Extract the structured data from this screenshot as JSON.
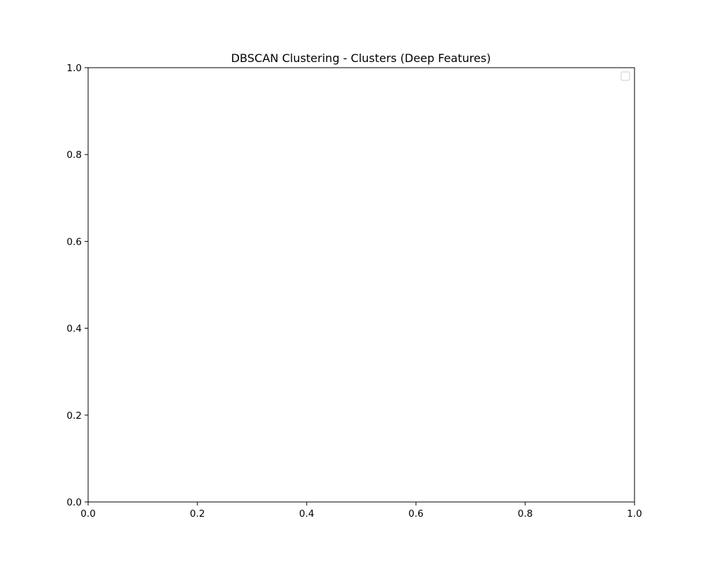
{
  "chart_data": {
    "type": "scatter",
    "title": "DBSCAN Clustering - Clusters (Deep Features)",
    "xlabel": "",
    "ylabel": "",
    "xlim": [
      0.0,
      1.0
    ],
    "ylim": [
      0.0,
      1.0
    ],
    "x_ticks": [
      "0.0",
      "0.2",
      "0.4",
      "0.6",
      "0.8",
      "1.0"
    ],
    "y_ticks": [
      "0.0",
      "0.2",
      "0.4",
      "0.6",
      "0.8",
      "1.0"
    ],
    "series": [],
    "grid": false,
    "legend": {
      "placement": "top-right",
      "entries": []
    }
  },
  "colors": {
    "background": "#ffffff",
    "axes": "#000000",
    "legend_border": "#cccccc"
  }
}
